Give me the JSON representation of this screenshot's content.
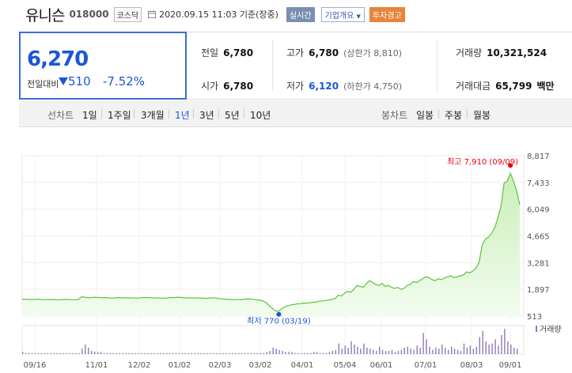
{
  "header": {
    "name": "유니슨",
    "code": "018000",
    "market": "코스닥",
    "timestamp": "2020.09.15 11:03 기준(장중)",
    "realtime_btn": "실시간",
    "overview_btn": "기업개요",
    "caution_btn": "투자경고"
  },
  "price": {
    "current": "6,270",
    "diff_label": "전일대비",
    "diff_value": "510",
    "diff_pct": "-7.52%"
  },
  "stats": {
    "prev_label": "전일",
    "prev_value": "6,780",
    "high_label": "고가",
    "high_value": "6,780",
    "high_sub": "(상한가 8,810)",
    "volume_label": "거래량",
    "volume_value": "10,321,524",
    "open_label": "시가",
    "open_value": "6,780",
    "low_label": "저가",
    "low_value": "6,120",
    "low_sub": "(하한가 4,750)",
    "amount_label": "거래대금",
    "amount_value": "65,799",
    "amount_unit": "백만"
  },
  "periods": {
    "line_label": "선차트",
    "line_items": [
      "1일",
      "1주일",
      "3개월",
      "1년",
      "3년",
      "5년",
      "10년"
    ],
    "active": "1년",
    "candle_label": "봉차트",
    "candle_items": [
      "일봉",
      "주봉",
      "월봉"
    ]
  },
  "chart_data": {
    "type": "area",
    "yticks": [
      "8,817",
      "7,433",
      "6,049",
      "4,665",
      "3,281",
      "1,897",
      "513"
    ],
    "ylim": [
      513,
      8817
    ],
    "xticks": [
      "09/16",
      "11/01",
      "12/02",
      "01/02",
      "02/03",
      "03/02",
      "04/01",
      "05/04",
      "06/01",
      "07/01",
      "08/03",
      "09/01"
    ],
    "high_label": "최고 7,910 (09/09)",
    "low_label": "최저 770 (03/19)",
    "volume_label": "거래량",
    "colors": {
      "line": "#5cc23d",
      "fill_top": "#c8efb8",
      "fill_bottom": "#f3fcef",
      "high": "#e60012",
      "low": "#1b57d6",
      "volume": "#8e7ab5"
    },
    "price_series": [
      1390,
      1390,
      1380,
      1370,
      1380,
      1390,
      1370,
      1360,
      1380,
      1370,
      1370,
      1360,
      1350,
      1370,
      1380,
      1370,
      1360,
      1360,
      1370,
      1520,
      1490,
      1470,
      1460,
      1490,
      1480,
      1470,
      1460,
      1470,
      1450,
      1440,
      1460,
      1470,
      1460,
      1470,
      1450,
      1460,
      1440,
      1450,
      1460,
      1480,
      1470,
      1460,
      1450,
      1460,
      1440,
      1440,
      1450,
      1460,
      1470,
      1480,
      1490,
      1470,
      1460,
      1450,
      1460,
      1450,
      1460,
      1450,
      1440,
      1430,
      1450,
      1460,
      1450,
      1420,
      1400,
      1390,
      1380,
      1370,
      1360,
      1380,
      1370,
      1390,
      1410,
      1400,
      1380,
      1360,
      1330,
      1300,
      1200,
      1050,
      900,
      780,
      770,
      900,
      1000,
      1050,
      1100,
      1120,
      1150,
      1160,
      1190,
      1180,
      1210,
      1230,
      1250,
      1280,
      1300,
      1320,
      1350,
      1380,
      1420,
      1600,
      1550,
      1700,
      1800,
      1750,
      1900,
      2100,
      2050,
      2000,
      2200,
      2350,
      2250,
      2150,
      2100,
      2200,
      2050,
      2100,
      2000,
      1950,
      2000,
      1900,
      1950,
      2100,
      2150,
      2300,
      2250,
      2350,
      2450,
      2550,
      2500,
      2400,
      2350,
      2450,
      2400,
      2500,
      2550,
      2600,
      2500,
      2550,
      2600,
      2650,
      2800,
      2750,
      2850,
      3000,
      3300,
      4200,
      4500,
      4600,
      4800,
      5100,
      5600,
      6200,
      7400,
      7500,
      7900,
      7500,
      7000,
      6270
    ],
    "volume_series": [
      2,
      1,
      1,
      1,
      1,
      1,
      1,
      1,
      1,
      1,
      1,
      1,
      1,
      1,
      1,
      1,
      1,
      1,
      1,
      5,
      9,
      6,
      3,
      2,
      2,
      2,
      1,
      1,
      1,
      1,
      1,
      1,
      1,
      1,
      1,
      1,
      1,
      1,
      1,
      1,
      1,
      1,
      1,
      1,
      1,
      1,
      1,
      1,
      1,
      1,
      1,
      1,
      1,
      1,
      1,
      1,
      1,
      1,
      1,
      1,
      1,
      1,
      1,
      1,
      1,
      1,
      1,
      1,
      1,
      1,
      1,
      1,
      1,
      1,
      1,
      1,
      1,
      1,
      2,
      3,
      6,
      5,
      4,
      3,
      2,
      2,
      2,
      1,
      1,
      1,
      1,
      1,
      1,
      2,
      2,
      1,
      1,
      1,
      2,
      3,
      4,
      10,
      5,
      8,
      6,
      12,
      9,
      7,
      5,
      10,
      6,
      5,
      4,
      3,
      7,
      4,
      3,
      3,
      4,
      2,
      3,
      4,
      6,
      7,
      5,
      4,
      8,
      6,
      20,
      14,
      7,
      4,
      6,
      5,
      9,
      6,
      4,
      7,
      5,
      4,
      3,
      10,
      6,
      8,
      5,
      7,
      16,
      22,
      12,
      9,
      10,
      14,
      8,
      18,
      24,
      12,
      9,
      6,
      5
    ]
  }
}
